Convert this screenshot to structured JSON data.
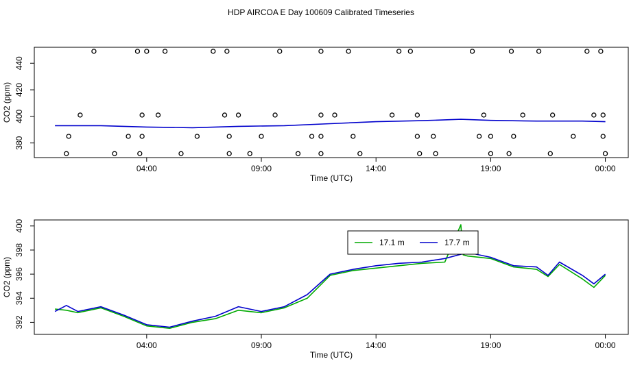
{
  "page_title": "HDP AIRCOA E  Day 100609  Calibrated Timeseries",
  "chart_data": [
    {
      "type": "scatter",
      "xlabel": "Time (UTC)",
      "ylabel": "CO2 (ppm)",
      "x_ticks": [
        "04:00",
        "09:00",
        "14:00",
        "19:00",
        "00:00"
      ],
      "x_tick_hours": [
        4,
        9,
        14,
        19,
        24
      ],
      "y_ticks": [
        380,
        400,
        420,
        440
      ],
      "xlim_hours": [
        -0.9,
        25.0
      ],
      "ylim": [
        369,
        452
      ],
      "series": [
        {
          "color": "#0000cc",
          "x": [
            0,
            2,
            4,
            6,
            8,
            10,
            12,
            14,
            16,
            17.7,
            19,
            21,
            23,
            24
          ],
          "y": [
            393.0,
            393.0,
            392.0,
            391.5,
            392.5,
            393.0,
            394.5,
            396.0,
            396.8,
            397.8,
            397.0,
            396.5,
            396.5,
            396.0
          ]
        }
      ],
      "markers": {
        "x": [
          1.7,
          3.6,
          4.0,
          4.8,
          6.9,
          7.5,
          9.8,
          11.6,
          12.8,
          15.0,
          15.5,
          18.2,
          19.9,
          21.1,
          23.2,
          23.8,
          1.1,
          3.8,
          4.5,
          7.4,
          8.0,
          9.6,
          11.6,
          12.2,
          14.7,
          15.8,
          18.7,
          20.4,
          21.7,
          23.5,
          23.9,
          0.6,
          3.2,
          3.8,
          6.2,
          7.6,
          9.0,
          11.2,
          11.6,
          13.0,
          15.8,
          16.5,
          18.5,
          19.0,
          20.0,
          22.6,
          23.9,
          0.5,
          2.6,
          3.7,
          5.5,
          7.6,
          8.5,
          10.6,
          11.6,
          13.3,
          15.9,
          16.6,
          19.0,
          19.8,
          21.6,
          24.0
        ],
        "y": [
          449,
          449,
          449,
          449,
          449,
          449,
          449,
          449,
          449,
          449,
          449,
          449,
          449,
          449,
          449,
          449,
          401,
          401,
          401,
          401,
          401,
          401,
          401,
          401,
          401,
          401,
          401,
          401,
          401,
          401,
          401,
          385,
          385,
          385,
          385,
          385,
          385,
          385,
          385,
          385,
          385,
          385,
          385,
          385,
          385,
          385,
          385,
          372,
          372,
          372,
          372,
          372,
          372,
          372,
          372,
          372,
          372,
          372,
          372,
          372,
          372,
          372
        ]
      }
    },
    {
      "type": "line",
      "xlabel": "Time (UTC)",
      "ylabel": "CO2 (ppm)",
      "x_ticks": [
        "04:00",
        "09:00",
        "14:00",
        "19:00",
        "00:00"
      ],
      "x_tick_hours": [
        4,
        9,
        14,
        19,
        24
      ],
      "y_ticks": [
        392,
        394,
        396,
        398,
        400
      ],
      "xlim_hours": [
        -0.9,
        25.0
      ],
      "ylim": [
        391.0,
        400.5
      ],
      "legend": [
        "17.1 m",
        "17.7 m"
      ],
      "legend_colors": [
        "#00aa00",
        "#0000cc"
      ],
      "series": [
        {
          "name": "17.1 m",
          "color": "#00aa00",
          "x": [
            0,
            0.5,
            1,
            2,
            3,
            4,
            5,
            6,
            7,
            8,
            9,
            10,
            11,
            12,
            13,
            14,
            15,
            16,
            17,
            17.7,
            17.8,
            18,
            19,
            20,
            21,
            21.5,
            22,
            23,
            23.5,
            24
          ],
          "y": [
            393.1,
            393.0,
            392.8,
            393.2,
            392.5,
            391.7,
            391.5,
            392.0,
            392.3,
            393.0,
            392.8,
            393.2,
            394.0,
            395.9,
            396.3,
            396.5,
            396.7,
            396.9,
            397.0,
            400.1,
            397.6,
            397.5,
            397.3,
            396.6,
            396.4,
            395.8,
            396.8,
            395.6,
            394.9,
            395.9
          ]
        },
        {
          "name": "17.7 m",
          "color": "#0000cc",
          "x": [
            0,
            0.5,
            1,
            2,
            3,
            4,
            5,
            6,
            7,
            8,
            9,
            10,
            11,
            12,
            13,
            14,
            15,
            16,
            17,
            18,
            19,
            20,
            21,
            21.5,
            22,
            23,
            23.5,
            24
          ],
          "y": [
            392.9,
            393.4,
            392.9,
            393.3,
            392.6,
            391.8,
            391.6,
            392.1,
            392.5,
            393.3,
            392.9,
            393.3,
            394.3,
            396.0,
            396.4,
            396.7,
            396.9,
            397.0,
            397.3,
            397.8,
            397.4,
            396.7,
            396.6,
            395.9,
            397.0,
            395.9,
            395.2,
            396.0
          ]
        }
      ]
    }
  ]
}
